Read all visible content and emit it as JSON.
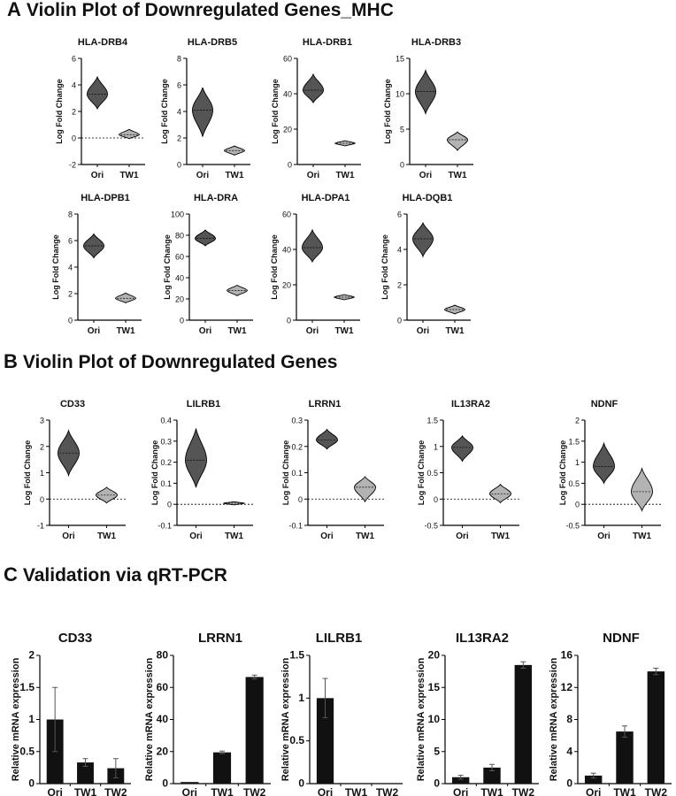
{
  "sections": {
    "A": {
      "letter": "A",
      "title": "Violin Plot of Downregulated Genes_MHC"
    },
    "B": {
      "letter": "B",
      "title": "Violin Plot of Downregulated Genes"
    },
    "C": {
      "letter": "C",
      "title": "Validation via qRT-PCR"
    }
  },
  "colors": {
    "ori": "#555555",
    "tw1": "#b3b3b3",
    "bar": "#111111",
    "stroke": "#000000"
  },
  "violin_ylabel": "Log Fold Change",
  "bar_ylabel": "Relative mRNA expression",
  "chart_data": [
    {
      "panel": "A",
      "type": "violin",
      "title": "HLA-DRB4",
      "categories": [
        "Ori",
        "TW1"
      ],
      "ylim": [
        -2,
        6
      ],
      "yticks": [
        -2,
        0,
        2,
        4,
        6
      ],
      "zero_line": true,
      "series": [
        {
          "name": "Ori",
          "center": 3.3,
          "min": 2.2,
          "max": 4.6
        },
        {
          "name": "TW1",
          "center": 0.25,
          "min": -0.05,
          "max": 0.65
        }
      ]
    },
    {
      "panel": "A",
      "type": "violin",
      "title": "HLA-DRB5",
      "categories": [
        "Ori",
        "TW1"
      ],
      "ylim": [
        0,
        8
      ],
      "yticks": [
        0,
        2,
        4,
        6,
        8
      ],
      "zero_line": false,
      "series": [
        {
          "name": "Ori",
          "center": 4.1,
          "min": 2.1,
          "max": 5.8
        },
        {
          "name": "TW1",
          "center": 1.05,
          "min": 0.7,
          "max": 1.4
        }
      ]
    },
    {
      "panel": "A",
      "type": "violin",
      "title": "HLA-DRB1",
      "categories": [
        "Ori",
        "TW1"
      ],
      "ylim": [
        0,
        60
      ],
      "yticks": [
        0,
        20,
        40,
        60
      ],
      "zero_line": false,
      "series": [
        {
          "name": "Ori",
          "center": 42,
          "min": 35,
          "max": 51
        },
        {
          "name": "TW1",
          "center": 12,
          "min": 10.5,
          "max": 13.5
        }
      ]
    },
    {
      "panel": "A",
      "type": "violin",
      "title": "HLA-DRB3",
      "categories": [
        "Ori",
        "TW1"
      ],
      "ylim": [
        0,
        15
      ],
      "yticks": [
        0,
        5,
        10,
        15
      ],
      "zero_line": false,
      "series": [
        {
          "name": "Ori",
          "center": 10.3,
          "min": 7.2,
          "max": 13.3
        },
        {
          "name": "TW1",
          "center": 3.5,
          "min": 2,
          "max": 4.6
        }
      ]
    },
    {
      "panel": "A",
      "type": "violin",
      "title": "HLA-DPB1",
      "categories": [
        "Ori",
        "TW1"
      ],
      "ylim": [
        0,
        8
      ],
      "yticks": [
        0,
        2,
        4,
        6,
        8
      ],
      "zero_line": false,
      "series": [
        {
          "name": "Ori",
          "center": 5.6,
          "min": 4.7,
          "max": 6.5
        },
        {
          "name": "TW1",
          "center": 1.65,
          "min": 1.3,
          "max": 2.05
        }
      ]
    },
    {
      "panel": "A",
      "type": "violin",
      "title": "HLA-DRA",
      "categories": [
        "Ori",
        "TW1"
      ],
      "ylim": [
        0,
        100
      ],
      "yticks": [
        0,
        20,
        40,
        60,
        80,
        100
      ],
      "zero_line": false,
      "series": [
        {
          "name": "Ori",
          "center": 77,
          "min": 70,
          "max": 85
        },
        {
          "name": "TW1",
          "center": 28,
          "min": 23,
          "max": 33
        }
      ]
    },
    {
      "panel": "A",
      "type": "violin",
      "title": "HLA-DPA1",
      "categories": [
        "Ori",
        "TW1"
      ],
      "ylim": [
        0,
        60
      ],
      "yticks": [
        0,
        20,
        40,
        60
      ],
      "zero_line": false,
      "series": [
        {
          "name": "Ori",
          "center": 41,
          "min": 33,
          "max": 51
        },
        {
          "name": "TW1",
          "center": 13,
          "min": 11.5,
          "max": 14.5
        }
      ]
    },
    {
      "panel": "A",
      "type": "violin",
      "title": "HLA-DQB1",
      "categories": [
        "Ori",
        "TW1"
      ],
      "ylim": [
        0,
        6
      ],
      "yticks": [
        0,
        2,
        4,
        6
      ],
      "zero_line": false,
      "series": [
        {
          "name": "Ori",
          "center": 4.6,
          "min": 3.6,
          "max": 5.5
        },
        {
          "name": "TW1",
          "center": 0.6,
          "min": 0.35,
          "max": 0.85
        }
      ]
    },
    {
      "panel": "B",
      "type": "violin",
      "title": "CD33",
      "categories": [
        "Ori",
        "TW1"
      ],
      "ylim": [
        -1,
        3
      ],
      "yticks": [
        -1,
        0,
        1,
        2,
        3
      ],
      "zero_line": true,
      "series": [
        {
          "name": "Ori",
          "center": 1.75,
          "min": 0.9,
          "max": 2.6
        },
        {
          "name": "TW1",
          "center": 0.15,
          "min": -0.15,
          "max": 0.45
        }
      ]
    },
    {
      "panel": "B",
      "type": "violin",
      "title": "LILRB1",
      "categories": [
        "Ori",
        "TW1"
      ],
      "ylim": [
        -0.1,
        0.4
      ],
      "yticks": [
        -0.1,
        0,
        0.1,
        0.2,
        0.3,
        0.4
      ],
      "zero_line": true,
      "series": [
        {
          "name": "Ori",
          "center": 0.21,
          "min": 0.08,
          "max": 0.36
        },
        {
          "name": "TW1",
          "center": 0.005,
          "min": -0.003,
          "max": 0.012
        }
      ]
    },
    {
      "panel": "B",
      "type": "violin",
      "title": "LRRN1",
      "categories": [
        "Ori",
        "TW1"
      ],
      "ylim": [
        -0.1,
        0.3
      ],
      "yticks": [
        -0.1,
        0,
        0.1,
        0.2,
        0.3
      ],
      "zero_line": true,
      "series": [
        {
          "name": "Ori",
          "center": 0.225,
          "min": 0.19,
          "max": 0.265
        },
        {
          "name": "TW1",
          "center": 0.045,
          "min": -0.01,
          "max": 0.085
        }
      ]
    },
    {
      "panel": "B",
      "type": "violin",
      "title": "IL13RA2",
      "categories": [
        "Ori",
        "TW1"
      ],
      "ylim": [
        -0.5,
        1.5
      ],
      "yticks": [
        -0.5,
        0,
        0.5,
        1.0,
        1.5
      ],
      "zero_line": true,
      "series": [
        {
          "name": "Ori",
          "center": 0.98,
          "min": 0.72,
          "max": 1.2
        },
        {
          "name": "TW1",
          "center": 0.1,
          "min": -0.07,
          "max": 0.28
        }
      ]
    },
    {
      "panel": "B",
      "type": "violin",
      "title": "NDNF",
      "categories": [
        "Ori",
        "TW1"
      ],
      "ylim": [
        -0.5,
        2.0
      ],
      "yticks": [
        -0.5,
        0,
        0.5,
        1.0,
        1.5,
        2.0
      ],
      "zero_line": true,
      "series": [
        {
          "name": "Ori",
          "center": 0.9,
          "min": 0.5,
          "max": 1.45
        },
        {
          "name": "TW1",
          "center": 0.3,
          "min": -0.15,
          "max": 0.85
        }
      ]
    },
    {
      "panel": "C",
      "type": "bar",
      "title": "CD33",
      "categories": [
        "Ori",
        "TW1",
        "TW2"
      ],
      "ylim": [
        0,
        2
      ],
      "yticks": [
        0,
        0.5,
        1,
        1.5,
        2
      ],
      "values": [
        1.0,
        0.33,
        0.24
      ],
      "errors": [
        0.5,
        0.06,
        0.15
      ]
    },
    {
      "panel": "C",
      "type": "bar",
      "title": "LRRN1",
      "categories": [
        "Ori",
        "TW1",
        "TW2"
      ],
      "ylim": [
        0,
        80
      ],
      "yticks": [
        0,
        20,
        40,
        60,
        80
      ],
      "values": [
        1.0,
        19.5,
        66.5
      ],
      "errors": [
        0,
        0.8,
        1.2
      ]
    },
    {
      "panel": "C",
      "type": "bar",
      "title": "LILRB1",
      "categories": [
        "Ori",
        "TW1",
        "TW2"
      ],
      "ylim": [
        0,
        1.5
      ],
      "yticks": [
        0,
        0.5,
        1,
        1.5
      ],
      "values": [
        1.0,
        0,
        0
      ],
      "errors": [
        0.23,
        0,
        0
      ]
    },
    {
      "panel": "C",
      "type": "bar",
      "title": "IL13RA2",
      "categories": [
        "Ori",
        "TW1",
        "TW2"
      ],
      "ylim": [
        0,
        20
      ],
      "yticks": [
        0,
        5,
        10,
        15,
        20
      ],
      "values": [
        1.0,
        2.5,
        18.5
      ],
      "errors": [
        0.3,
        0.5,
        0.5
      ]
    },
    {
      "panel": "C",
      "type": "bar",
      "title": "NDNF",
      "categories": [
        "Ori",
        "TW1",
        "TW2"
      ],
      "ylim": [
        0,
        16
      ],
      "yticks": [
        0,
        4,
        8,
        12,
        16
      ],
      "values": [
        1.0,
        6.5,
        14.0
      ],
      "errors": [
        0.3,
        0.7,
        0.4
      ]
    }
  ]
}
